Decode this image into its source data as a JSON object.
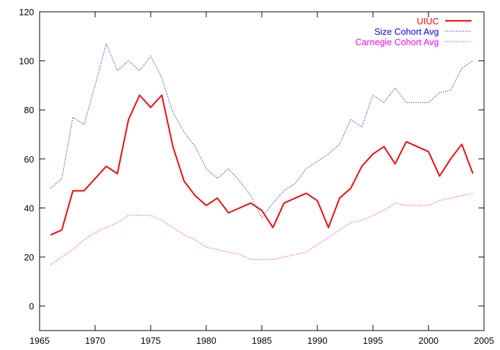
{
  "chart_data": {
    "type": "line",
    "title": "",
    "xlabel": "",
    "ylabel": "",
    "xlim": [
      1965,
      2005
    ],
    "ylim": [
      -10,
      120
    ],
    "x_ticks": [
      1965,
      1970,
      1975,
      1980,
      1985,
      1990,
      1995,
      2000,
      2005
    ],
    "y_ticks": [
      0,
      20,
      40,
      60,
      80,
      100,
      120
    ],
    "grid": false,
    "legend_position": "top-right",
    "x": [
      1966,
      1967,
      1968,
      1969,
      1970,
      1971,
      1972,
      1973,
      1974,
      1975,
      1976,
      1977,
      1978,
      1979,
      1980,
      1981,
      1982,
      1983,
      1984,
      1985,
      1986,
      1987,
      1988,
      1989,
      1990,
      1991,
      1992,
      1993,
      1994,
      1995,
      1996,
      1997,
      1998,
      1999,
      2000,
      2001,
      2002,
      2003,
      2004
    ],
    "series": [
      {
        "name": "UIUC",
        "color": "#ff0000",
        "style": "solid",
        "values": [
          29,
          31,
          47,
          47,
          52,
          57,
          54,
          76,
          86,
          81,
          86,
          65,
          51,
          45,
          41,
          44,
          38,
          40,
          42,
          39,
          32,
          42,
          44,
          46,
          43,
          32,
          44,
          48,
          57,
          62,
          65,
          58,
          67,
          65,
          63,
          53,
          60,
          66,
          54
        ]
      },
      {
        "name": "Size Cohort Avg",
        "color": "#0000ff",
        "style": "dotted",
        "values": [
          48,
          52,
          77,
          74,
          90,
          107,
          96,
          100,
          96,
          102,
          93,
          79,
          71,
          65,
          56,
          52,
          56,
          51,
          45,
          36,
          42,
          47,
          50,
          56,
          59,
          62,
          66,
          76,
          73,
          86,
          83,
          89,
          83,
          83,
          83,
          87,
          88,
          97,
          100
        ]
      },
      {
        "name": "Carnegie Cohort Avg",
        "color": "#ff00ff",
        "style": "dotted",
        "values": [
          17,
          20,
          23,
          27,
          30,
          32,
          34,
          37,
          37,
          37,
          35,
          32,
          29,
          27,
          24,
          23,
          22,
          21,
          19,
          19,
          19,
          20,
          21,
          22,
          25,
          28,
          31,
          34,
          35,
          37,
          39,
          42,
          41,
          41,
          41,
          43,
          44,
          45,
          46
        ]
      }
    ]
  }
}
